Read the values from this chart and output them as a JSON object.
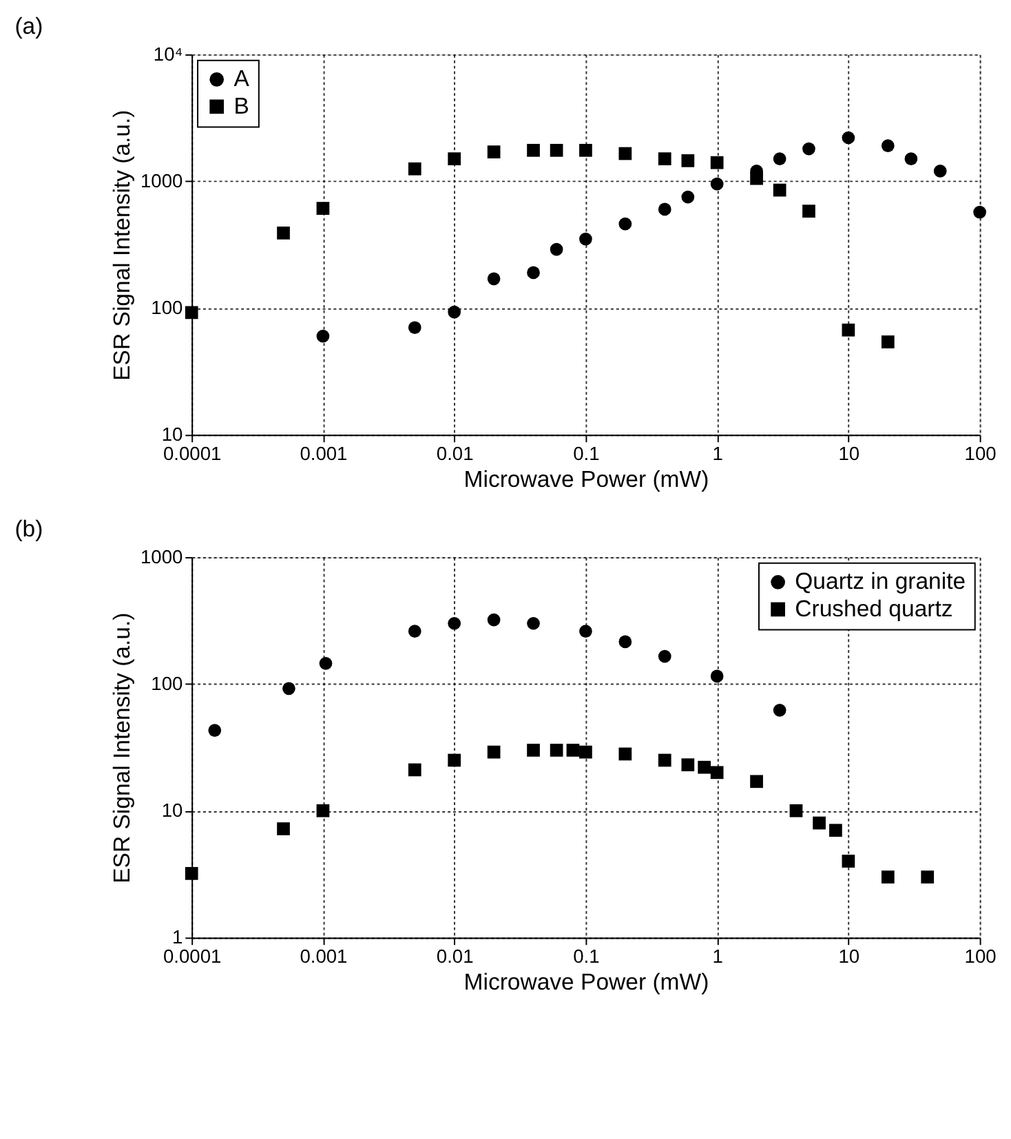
{
  "chart_data": [
    {
      "type": "scatter",
      "title": "(a)",
      "xlabel": "Microwave Power  (mW)",
      "ylabel": "ESR Signal Intensity  (a.u.)",
      "log": "xy",
      "grid": true,
      "legend": "top left",
      "xlim": [
        0.0001,
        100
      ],
      "xticks": [
        0.0001,
        0.001,
        0.01,
        0.1,
        1,
        10,
        100
      ],
      "ylim": [
        10,
        10000
      ],
      "yticks": [
        10,
        100,
        1000,
        {
          "value": 10000,
          "label": "10⁴"
        }
      ],
      "series": [
        {
          "name": "A",
          "color": "#000000",
          "marker": "circle",
          "x": [
            0.001,
            0.005,
            0.01,
            0.02,
            0.04,
            0.06,
            0.1,
            0.2,
            0.4,
            0.6,
            1,
            2,
            3,
            5,
            10,
            20,
            30,
            50,
            100
          ],
          "values": [
            60,
            70,
            93,
            170,
            190,
            290,
            350,
            460,
            600,
            750,
            950,
            1200,
            1500,
            1800,
            2200,
            1900,
            1500,
            1200,
            570
          ]
        },
        {
          "name": "B",
          "color": "#000000",
          "marker": "square",
          "x": [
            0.0001,
            0.0005,
            0.001,
            0.005,
            0.01,
            0.02,
            0.04,
            0.06,
            0.1,
            0.2,
            0.4,
            0.6,
            1,
            2,
            3,
            5,
            10,
            20
          ],
          "values": [
            92,
            390,
            610,
            1250,
            1500,
            1700,
            1750,
            1750,
            1750,
            1650,
            1500,
            1450,
            1400,
            1050,
            850,
            580,
            67,
            54
          ]
        }
      ]
    },
    {
      "type": "scatter",
      "title": "(b)",
      "xlabel": "Microwave Power  (mW)",
      "ylabel": "ESR Signal Intensity  (a.u.)",
      "log": "xy",
      "grid": true,
      "legend": "top right",
      "xlim": [
        0.0001,
        100
      ],
      "xticks": [
        0.0001,
        0.001,
        0.01,
        0.1,
        1,
        10,
        100
      ],
      "ylim": [
        1,
        1000
      ],
      "yticks": [
        1,
        10,
        100,
        1000
      ],
      "series": [
        {
          "name": "Quartz in granite",
          "color": "#000000",
          "marker": "circle",
          "x": [
            0.00015,
            0.00055,
            0.00105,
            0.005,
            0.01,
            0.02,
            0.04,
            0.1,
            0.2,
            0.4,
            1,
            3
          ],
          "values": [
            43,
            92,
            145,
            260,
            300,
            320,
            300,
            260,
            215,
            165,
            115,
            62
          ]
        },
        {
          "name": "Crushed quartz",
          "color": "#000000",
          "marker": "square",
          "x": [
            0.0001,
            0.0005,
            0.001,
            0.005,
            0.01,
            0.02,
            0.04,
            0.06,
            0.08,
            0.1,
            0.2,
            0.4,
            0.6,
            0.8,
            1,
            2,
            4,
            6,
            8,
            10,
            20,
            40
          ],
          "values": [
            3.2,
            7.2,
            10,
            21,
            25,
            29,
            30,
            30,
            30,
            29,
            28,
            25,
            23,
            22,
            20,
            17,
            10,
            8,
            7,
            4,
            3,
            3
          ]
        }
      ]
    }
  ]
}
